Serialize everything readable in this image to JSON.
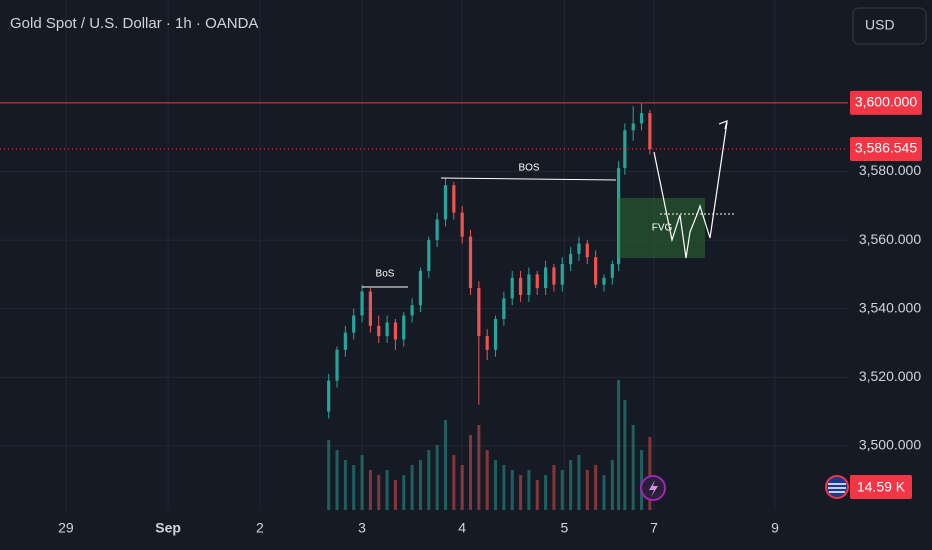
{
  "chart_data": {
    "type": "candlestick",
    "title": "Gold Spot / U.S. Dollar · 1h · OANDA",
    "currency": "USD",
    "x": [
      63,
      65,
      67,
      69,
      71,
      73,
      75,
      77,
      79,
      81,
      83,
      85,
      87,
      89,
      91,
      93,
      95,
      97,
      99,
      101,
      103,
      105,
      107,
      109,
      111,
      113,
      115,
      117,
      119,
      121,
      123,
      125,
      127,
      129,
      131,
      132.5,
      134,
      136,
      138,
      140
    ],
    "open": [
      3510,
      3519,
      3528,
      3533,
      3538,
      3545,
      3535,
      3532,
      3536,
      3531,
      3538,
      3541,
      3551,
      3560,
      3566,
      3576,
      3568,
      3561,
      3546,
      3532,
      3528,
      3537,
      3543,
      3549,
      3544,
      3550,
      3546,
      3552,
      3547,
      3553,
      3556,
      3559,
      3555,
      3547,
      3549,
      3553,
      3581,
      3592,
      3594,
      3597
    ],
    "high": [
      3521,
      3529,
      3535,
      3540,
      3547,
      3546,
      3538,
      3538,
      3537,
      3539,
      3543,
      3552,
      3561,
      3568,
      3578,
      3577,
      3570,
      3563,
      3548,
      3534,
      3538,
      3545,
      3551,
      3551,
      3552,
      3551,
      3554,
      3553,
      3555,
      3558,
      3561,
      3560,
      3557,
      3550,
      3554,
      3583,
      3594,
      3599,
      3600,
      3598
    ],
    "low": [
      3508,
      3517,
      3526,
      3531,
      3536,
      3533,
      3530,
      3530,
      3528,
      3529,
      3536,
      3539,
      3549,
      3558,
      3564,
      3566,
      3559,
      3544,
      3512,
      3525,
      3526,
      3535,
      3541,
      3542,
      3542,
      3544,
      3544,
      3545,
      3545,
      3551,
      3554,
      3553,
      3546,
      3545,
      3547,
      3551,
      3579,
      3589,
      3592,
      3585
    ],
    "close": [
      3519,
      3528,
      3533,
      3538,
      3545,
      3535,
      3532,
      3536,
      3531,
      3538,
      3541,
      3551,
      3560,
      3566,
      3576,
      3568,
      3561,
      3546,
      3532,
      3528,
      3537,
      3543,
      3549,
      3544,
      3550,
      3546,
      3552,
      3547,
      3553,
      3556,
      3559,
      3555,
      3547,
      3549,
      3553,
      3581,
      3592,
      3594,
      3597,
      3586.545
    ],
    "volume": [
      14,
      12,
      10,
      9,
      11,
      8,
      7,
      8,
      6,
      7,
      9,
      10,
      12,
      13,
      18,
      11,
      9,
      15,
      17,
      12,
      10,
      9,
      8,
      7,
      8,
      6,
      7,
      9,
      8,
      10,
      11,
      8,
      9,
      7,
      10,
      26,
      22,
      17,
      12,
      14.59
    ],
    "volume_label": "14.59 K",
    "up_color": "#26a69a",
    "down_color": "#ef5350",
    "xlim": [
      -15.8,
      187.5
    ],
    "xticks": [
      {
        "value": 0,
        "label": "29"
      },
      {
        "value": 24.5,
        "label": "Sep"
      },
      {
        "value": 46.5,
        "label": "2"
      },
      {
        "value": 71,
        "label": "3"
      },
      {
        "value": 95,
        "label": "4"
      },
      {
        "value": 119.5,
        "label": "5"
      },
      {
        "value": 141,
        "label": "7"
      },
      {
        "value": 170,
        "label": "9"
      }
    ],
    "ylim": [
      3481.3,
      3630
    ],
    "yticks": [
      {
        "value": 3500,
        "label": "3,500.000"
      },
      {
        "value": 3520,
        "label": "3,520.000"
      },
      {
        "value": 3540,
        "label": "3,540.000"
      },
      {
        "value": 3560,
        "label": "3,560.000"
      },
      {
        "value": 3580,
        "label": "3,580.000"
      }
    ],
    "level": {
      "value": 3600,
      "label": "3,600.000"
    },
    "last_price": {
      "value": 3586.545,
      "label": "3,586.545"
    },
    "annotations": [
      "BoS",
      "BOS",
      "FVG"
    ],
    "grid": true
  }
}
